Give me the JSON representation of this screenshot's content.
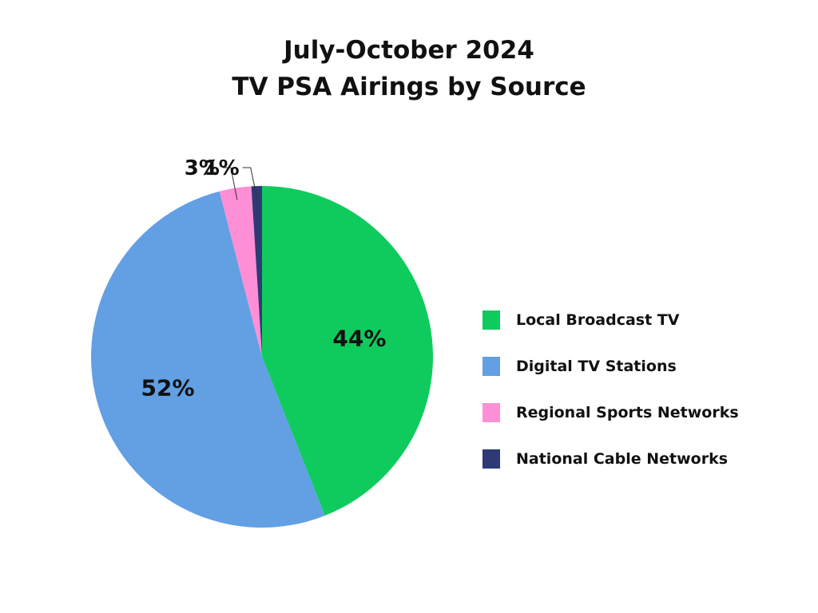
{
  "chart_data": {
    "type": "pie",
    "title_line1": "July-October 2024",
    "title_line2": "TV PSA Airings by Source",
    "slices": [
      {
        "name": "Local Broadcast TV",
        "value": 44,
        "label": "44%",
        "color": "#0fcb5d"
      },
      {
        "name": "Digital TV Stations",
        "value": 52,
        "label": "52%",
        "color": "#629fe3"
      },
      {
        "name": "Regional Sports Networks",
        "value": 3,
        "label": "3%",
        "color": "#fe8fd6"
      },
      {
        "name": "National Cable Networks",
        "value": 1,
        "label": "1%",
        "color": "#2e3a75"
      }
    ],
    "legend_position": "right"
  }
}
